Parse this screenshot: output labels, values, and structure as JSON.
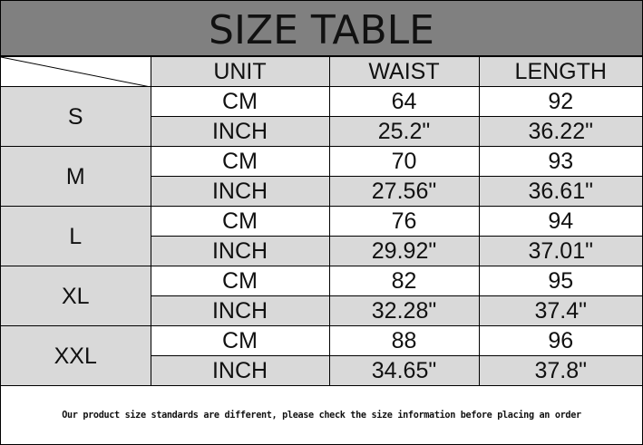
{
  "title": "SIZE TABLE",
  "headers": [
    "UNIT",
    "WAIST",
    "LENGTH"
  ],
  "rows": [
    {
      "size": "S",
      "cm": {
        "unit": "CM",
        "waist": "64",
        "length": "92"
      },
      "inch": {
        "unit": "INCH",
        "waist": "25.2\"",
        "length": "36.22\""
      }
    },
    {
      "size": "M",
      "cm": {
        "unit": "CM",
        "waist": "70",
        "length": "93"
      },
      "inch": {
        "unit": "INCH",
        "waist": "27.56\"",
        "length": "36.61\""
      }
    },
    {
      "size": "L",
      "cm": {
        "unit": "CM",
        "waist": "76",
        "length": "94"
      },
      "inch": {
        "unit": "INCH",
        "waist": "29.92\"",
        "length": "37.01\""
      }
    },
    {
      "size": "XL",
      "cm": {
        "unit": "CM",
        "waist": "82",
        "length": "95"
      },
      "inch": {
        "unit": "INCH",
        "waist": "32.28\"",
        "length": "37.4\""
      }
    },
    {
      "size": "XXL",
      "cm": {
        "unit": "CM",
        "waist": "88",
        "length": "96"
      },
      "inch": {
        "unit": "INCH",
        "waist": "34.65\"",
        "length": "37.8\""
      }
    }
  ],
  "footer": "Our product size standards are different, please check the size information before placing an order",
  "colors": {
    "title_bg": "#808080",
    "cell_gray": "#d9d9d9"
  }
}
